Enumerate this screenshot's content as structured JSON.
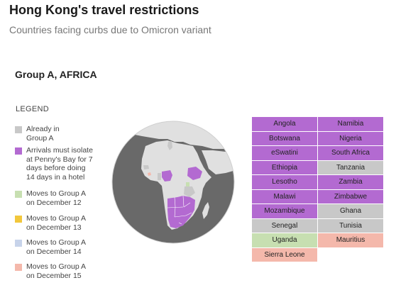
{
  "header": {
    "title": "Hong Kong's travel restrictions",
    "subtitle": "Countries facing curbs due to Omicron variant"
  },
  "group_heading": "Group A, AFRICA",
  "legend": {
    "title": "LEGEND",
    "items": [
      {
        "label": "Already in Group A",
        "lines": [
          "Already in",
          "Group A"
        ],
        "color": "#c8c8c8"
      },
      {
        "label": "Arrivals must isolate at Penny's Bay for 7 days before doing 14 days in a hotel",
        "lines": [
          "Arrivals must isolate",
          "at Penny's Bay for 7",
          "days before doing",
          "14 days in a hotel"
        ],
        "color": "#b36ad1"
      },
      {
        "label": "Moves to Group A on December 12",
        "lines": [
          "Moves to Group A",
          "on December 12"
        ],
        "color": "#c7dfb1"
      },
      {
        "label": "Moves to Group A on December 13",
        "lines": [
          "Moves to Group A",
          "on December 13"
        ],
        "color": "#f2c73c"
      },
      {
        "label": "Moves to Group A on December 14",
        "lines": [
          "Moves to Group A",
          "on December 14"
        ],
        "color": "#c7d3ea"
      },
      {
        "label": "Moves to Group A on December 15",
        "lines": [
          "Moves to Group A",
          "on December 15"
        ],
        "color": "#f4b8ab"
      }
    ]
  },
  "colors": {
    "purple": "#b36ad1",
    "grey": "#c8c8c8",
    "green": "#c7dfb1",
    "pink": "#f4b8ab",
    "ocean": "#696969",
    "land": "#e0e0e0"
  },
  "countries": [
    {
      "name": "Angola",
      "status": "purple"
    },
    {
      "name": "Namibia",
      "status": "purple"
    },
    {
      "name": "Botswana",
      "status": "purple"
    },
    {
      "name": "Nigeria",
      "status": "purple"
    },
    {
      "name": "eSwatini",
      "status": "purple"
    },
    {
      "name": "South Africa",
      "status": "purple"
    },
    {
      "name": "Ethiopia",
      "status": "purple"
    },
    {
      "name": "Tanzania",
      "status": "grey"
    },
    {
      "name": "Lesotho",
      "status": "purple"
    },
    {
      "name": "Zambia",
      "status": "purple"
    },
    {
      "name": "Malawi",
      "status": "purple"
    },
    {
      "name": "Zimbabwe",
      "status": "purple"
    },
    {
      "name": "Mozambique",
      "status": "purple"
    },
    {
      "name": "Ghana",
      "status": "grey"
    },
    {
      "name": "Senegal",
      "status": "grey"
    },
    {
      "name": "Tunisia",
      "status": "grey"
    },
    {
      "name": "Uganda",
      "status": "green"
    },
    {
      "name": "Mauritius",
      "status": "pink"
    },
    {
      "name": "Sierra Leone",
      "status": "pink"
    }
  ]
}
